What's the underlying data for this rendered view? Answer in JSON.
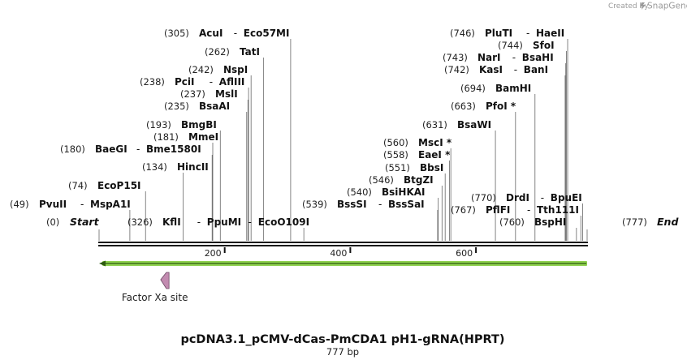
{
  "credit": {
    "prefix": "Created by",
    "brand": "SnapGene",
    "logo_icon": "snapgene-logo-icon"
  },
  "sequence": {
    "name": "pcDNA3.1_pCMV-dCas-PmCDA1 pH1-gRNA(HPRT)",
    "length_label": "777 bp",
    "length": 777,
    "start_label": "Start",
    "start_pos": "(0)",
    "end_label": "End",
    "end_pos": "(777)"
  },
  "ruler": {
    "ticks": [
      200,
      400,
      600
    ]
  },
  "features": [
    {
      "name": "Factor Xa site",
      "start": 111,
      "end": 123,
      "direction": "reverse",
      "color": "#c28bb0"
    }
  ],
  "orf": {
    "start": 0,
    "end": 777,
    "direction": "reverse",
    "color": "#8fd14f"
  },
  "cut_sites": [
    {
      "pos": "(0)",
      "names": [
        "Start"
      ],
      "bp": 0,
      "start": true
    },
    {
      "pos": "(49)",
      "names": [
        "PvuII",
        "MspA1I"
      ],
      "bp": 49
    },
    {
      "pos": "(74)",
      "names": [
        "EcoP15I"
      ],
      "bp": 74
    },
    {
      "pos": "(134)",
      "names": [
        "HincII"
      ],
      "bp": 134
    },
    {
      "pos": "(180)",
      "names": [
        "BaeGI",
        "Bme1580I"
      ],
      "bp": 180
    },
    {
      "pos": "(181)",
      "names": [
        "MmeI"
      ],
      "bp": 181
    },
    {
      "pos": "(193)",
      "names": [
        "BmgBI"
      ],
      "bp": 193
    },
    {
      "pos": "(235)",
      "names": [
        "BsaAI"
      ],
      "bp": 235
    },
    {
      "pos": "(237)",
      "names": [
        "MslI"
      ],
      "bp": 237
    },
    {
      "pos": "(238)",
      "names": [
        "PciI",
        "AflIII"
      ],
      "bp": 238
    },
    {
      "pos": "(242)",
      "names": [
        "NspI"
      ],
      "bp": 242
    },
    {
      "pos": "(262)",
      "names": [
        "TatI"
      ],
      "bp": 262
    },
    {
      "pos": "(305)",
      "names": [
        "AcuI",
        "Eco57MI"
      ],
      "bp": 305
    },
    {
      "pos": "(326)",
      "names": [
        "KflI",
        "PpuMI",
        "EcoO109I"
      ],
      "bp": 326
    },
    {
      "pos": "(539)",
      "names": [
        "BssSI",
        "BssSaI"
      ],
      "bp": 539
    },
    {
      "pos": "(540)",
      "names": [
        "BsiHKAI"
      ],
      "bp": 540
    },
    {
      "pos": "(546)",
      "names": [
        "BtgZI"
      ],
      "bp": 546
    },
    {
      "pos": "(551)",
      "names": [
        "BbsI"
      ],
      "bp": 551
    },
    {
      "pos": "(558)",
      "names": [
        "EaeI *"
      ],
      "bp": 558
    },
    {
      "pos": "(560)",
      "names": [
        "MscI *"
      ],
      "bp": 560
    },
    {
      "pos": "(631)",
      "names": [
        "BsaWI"
      ],
      "bp": 631
    },
    {
      "pos": "(663)",
      "names": [
        "PfoI *"
      ],
      "bp": 663
    },
    {
      "pos": "(694)",
      "names": [
        "BamHI"
      ],
      "bp": 694
    },
    {
      "pos": "(742)",
      "names": [
        "KasI",
        "BanI"
      ],
      "bp": 742
    },
    {
      "pos": "(743)",
      "names": [
        "NarI",
        "BsaHI"
      ],
      "bp": 743
    },
    {
      "pos": "(744)",
      "names": [
        "SfoI"
      ],
      "bp": 744
    },
    {
      "pos": "(746)",
      "names": [
        "PluTI",
        "HaeII"
      ],
      "bp": 746
    },
    {
      "pos": "(760)",
      "names": [
        "BspHI"
      ],
      "bp": 760
    },
    {
      "pos": "(767)",
      "names": [
        "PflFI",
        "Tth111I"
      ],
      "bp": 767
    },
    {
      "pos": "(770)",
      "names": [
        "DrdI",
        "BpuEI"
      ],
      "bp": 770
    },
    {
      "pos": "(777)",
      "names": [
        "End"
      ],
      "bp": 777,
      "end": true
    }
  ]
}
